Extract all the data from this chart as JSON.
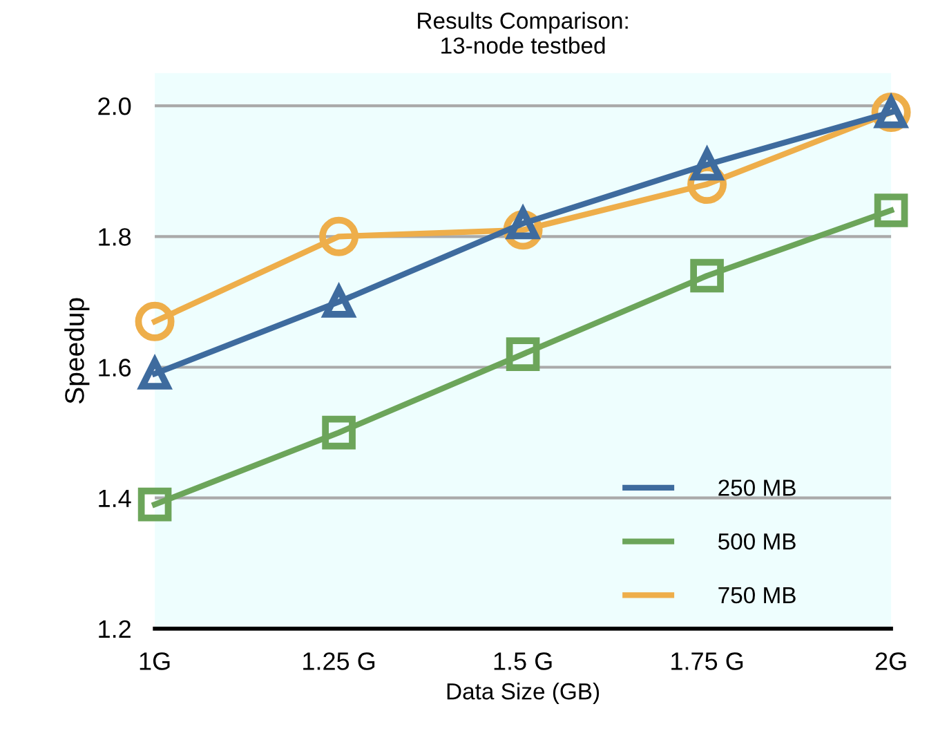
{
  "chart_data": {
    "type": "line",
    "title": "Results Comparison:\n13-node testbed",
    "xlabel": "Data Size (GB)",
    "ylabel": "Speedup",
    "categories": [
      "1G",
      "1.25 G",
      "1.5 G",
      "1.75 G",
      "2G"
    ],
    "series": [
      {
        "name": "250 MB",
        "color": "#3e6b9e",
        "marker": "triangle",
        "values": [
          1.59,
          1.7,
          1.82,
          1.91,
          1.99
        ]
      },
      {
        "name": "500 MB",
        "color": "#6ca55a",
        "marker": "square",
        "values": [
          1.39,
          1.5,
          1.62,
          1.74,
          1.84
        ]
      },
      {
        "name": "750 MB",
        "color": "#eeae4a",
        "marker": "circle",
        "values": [
          1.67,
          1.8,
          1.81,
          1.88,
          1.99
        ]
      }
    ],
    "ylim": [
      1.2,
      2.05
    ],
    "yticks": [
      1.2,
      1.4,
      1.6,
      1.8,
      {
        "value": 2,
        "label": "2.0"
      }
    ],
    "grid": "y",
    "legend": "bottom right",
    "line_style": "solid"
  }
}
